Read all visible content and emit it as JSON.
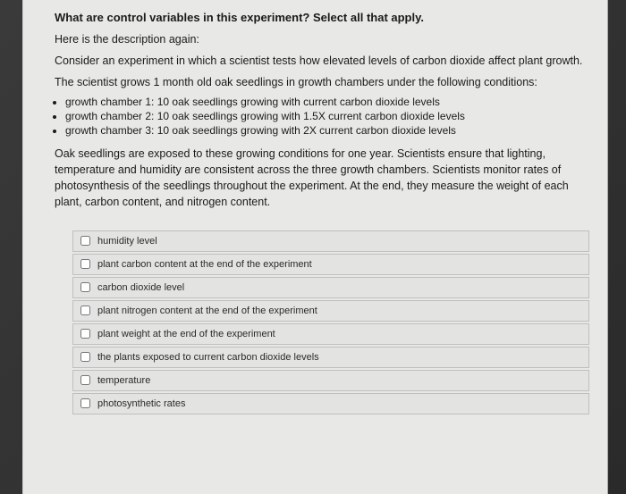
{
  "question_title": "What are control variables in this experiment?  Select all that apply.",
  "desc_intro": "Here is the description again:",
  "desc_line": "Consider an experiment in which a scientist tests how elevated levels of carbon dioxide affect plant growth.",
  "conditions_intro": "The scientist grows 1 month old oak seedlings in growth chambers under the following conditions:",
  "chambers": [
    "growth chamber 1:  10 oak seedlings growing with current carbon dioxide levels",
    "growth chamber 2:  10 oak seedlings growing with 1.5X current carbon dioxide levels",
    "growth chamber 3:  10 oak seedlings growing with 2X current carbon dioxide levels"
  ],
  "para": "Oak seedlings are exposed to these growing conditions for one year.  Scientists ensure that lighting, temperature and humidity are consistent across the three growth chambers.  Scientists monitor rates of photosynthesis of the seedlings throughout the experiment.  At the end, they measure the weight of each plant, carbon content, and nitrogen content.",
  "options": [
    "humidity level",
    "plant carbon content at the end of the experiment",
    "carbon dioxide level",
    "plant nitrogen content at the end of the experiment",
    "plant weight at the end of the experiment",
    "the plants exposed to current carbon dioxide levels",
    "temperature",
    "photosynthetic rates"
  ]
}
